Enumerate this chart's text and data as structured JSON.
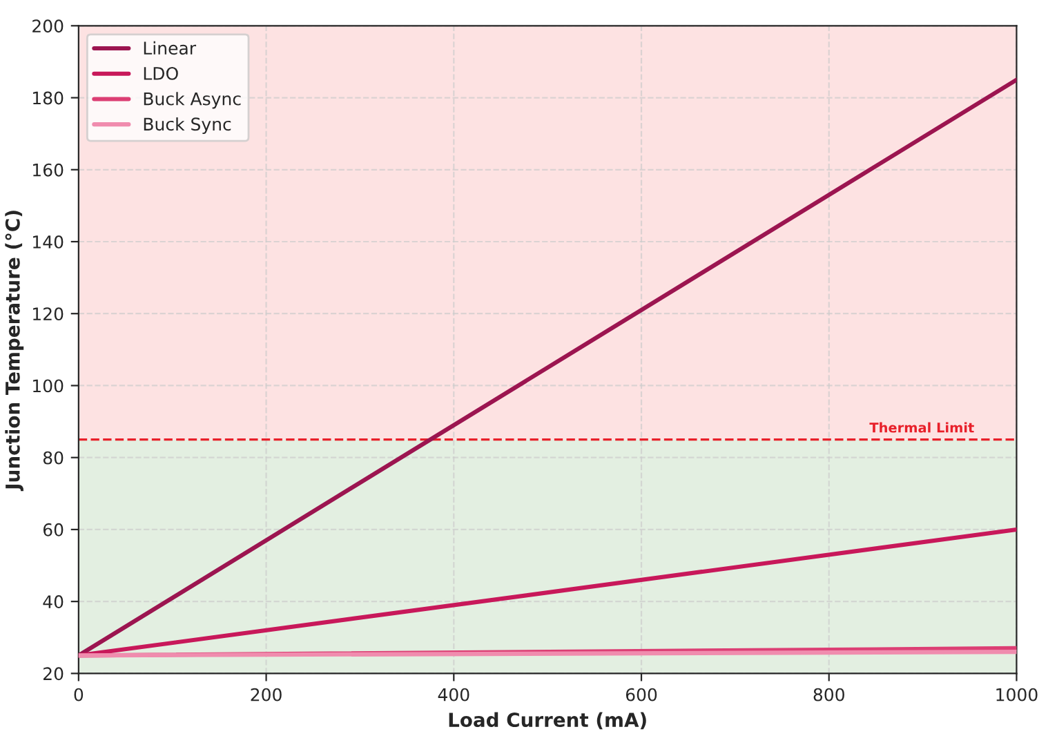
{
  "chart_data": {
    "type": "line",
    "xlabel": "Load Current (mA)",
    "ylabel": "Junction Temperature (°C)",
    "x": [
      0,
      1000
    ],
    "series": [
      {
        "name": "Linear",
        "color": "#9c1550",
        "values": [
          25,
          185
        ]
      },
      {
        "name": "LDO",
        "color": "#c8185a",
        "values": [
          25,
          60
        ]
      },
      {
        "name": "Buck Async",
        "color": "#dc3f74",
        "values": [
          25,
          27
        ]
      },
      {
        "name": "Buck Sync",
        "color": "#f08cae",
        "values": [
          25,
          26
        ]
      }
    ],
    "xlim": [
      0,
      1000
    ],
    "xticks": [
      0,
      200,
      400,
      600,
      800,
      1000
    ],
    "ylim": [
      20,
      200
    ],
    "yticks": [
      20,
      40,
      60,
      80,
      100,
      120,
      140,
      160,
      180,
      200
    ],
    "ref_lines": [
      {
        "axis": "y",
        "value": 85,
        "label": "Thermal Limit",
        "color": "#e8202a",
        "line_style": "dashed"
      }
    ],
    "bands": [
      {
        "axis": "y",
        "from": 20,
        "to": 85,
        "color": "#e3efe1"
      },
      {
        "axis": "y",
        "from": 85,
        "to": 200,
        "color": "#fde2e2"
      }
    ],
    "grid": true,
    "legend": "top left",
    "marker": "none",
    "line_style": "solid"
  }
}
